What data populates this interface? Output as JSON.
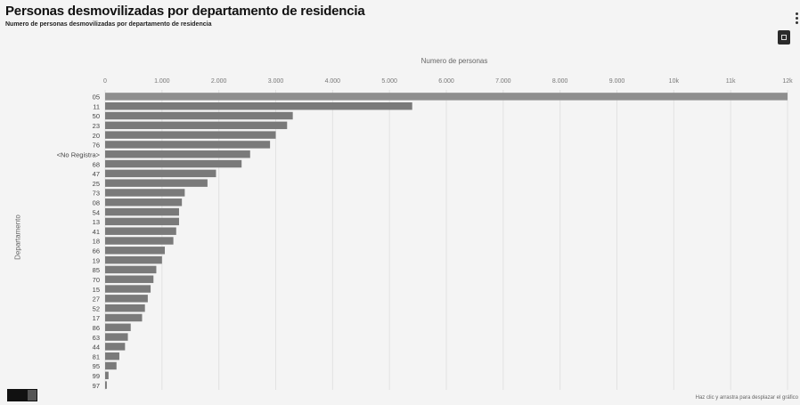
{
  "header": {
    "title": "Personas desmovilizadas por departamento de residencia",
    "subtitle": "Numero de personas desmovilizadas por departamento de residencia"
  },
  "footer": {
    "note": "Haz clic y arrastra para desplazar el gráfico"
  },
  "colors": {
    "bar": "#7a7a7a",
    "bar_top": "#8e8e8e",
    "background": "#f4f4f4"
  },
  "icons": [
    "more-options-icon",
    "toolbar-icon",
    "toggle-icon"
  ],
  "chart_data": {
    "type": "bar",
    "orientation": "horizontal",
    "title": "Personas desmovilizadas por departamento de residencia",
    "xlabel": "Numero de personas",
    "ylabel": "Departamento",
    "xlim": [
      0,
      12000
    ],
    "xticks": [
      "0",
      "1.000",
      "2.000",
      "3.000",
      "4.000",
      "5.000",
      "6.000",
      "7.000",
      "8.000",
      "9.000",
      "10k",
      "11k",
      "12k"
    ],
    "categories": [
      "05",
      "11",
      "50",
      "23",
      "20",
      "76",
      "<No Registra>",
      "68",
      "47",
      "25",
      "73",
      "08",
      "54",
      "13",
      "41",
      "18",
      "66",
      "19",
      "85",
      "70",
      "15",
      "27",
      "52",
      "17",
      "86",
      "63",
      "44",
      "81",
      "95",
      "99",
      "97"
    ],
    "values": [
      12000,
      5400,
      3300,
      3200,
      3000,
      2900,
      2550,
      2400,
      1950,
      1800,
      1400,
      1350,
      1300,
      1300,
      1250,
      1200,
      1050,
      1000,
      900,
      850,
      800,
      750,
      700,
      650,
      450,
      400,
      350,
      250,
      200,
      60,
      30
    ],
    "grid": true
  }
}
